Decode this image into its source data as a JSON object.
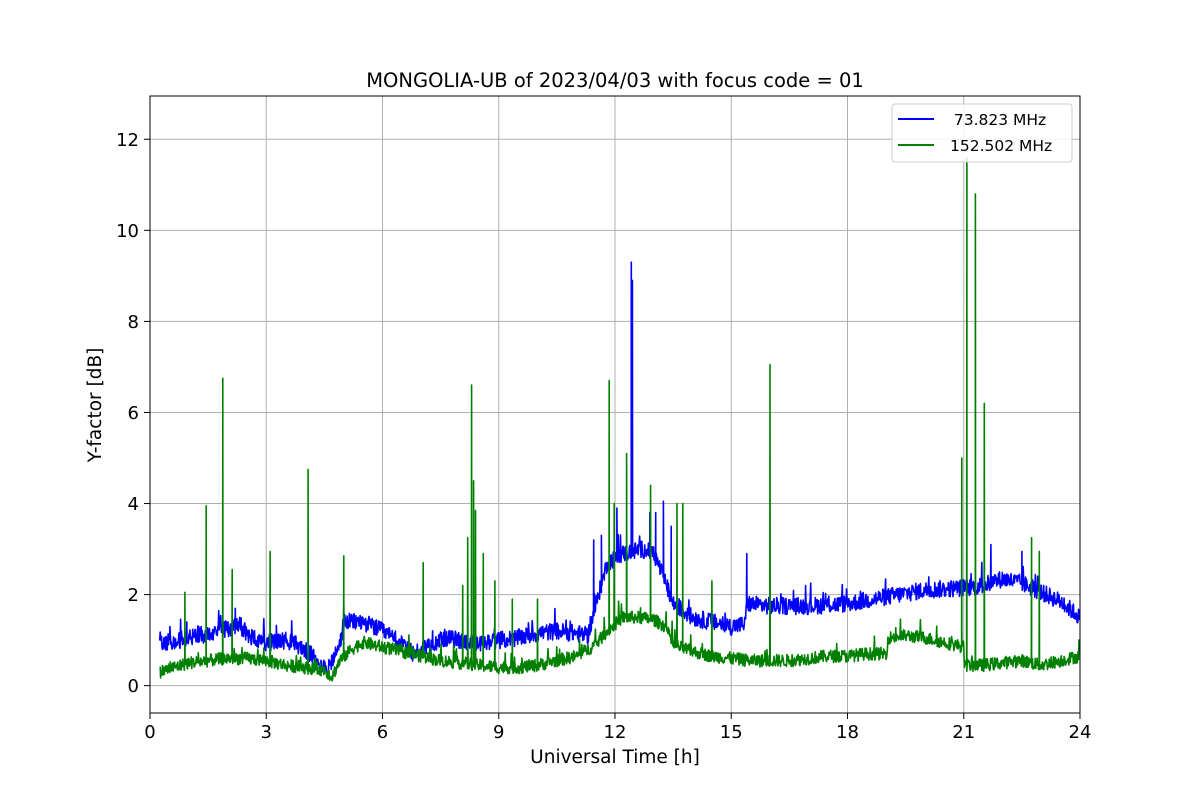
{
  "chart_data": {
    "type": "line",
    "title": "MONGOLIA-UB of 2023/04/03 with focus code = 01",
    "xlabel": "Universal Time [h]",
    "ylabel": "Y-factor [dB]",
    "xlim": [
      0,
      24
    ],
    "ylim": [
      -0.6,
      12.95
    ],
    "xticks": [
      0,
      3,
      6,
      9,
      12,
      15,
      18,
      21,
      24
    ],
    "yticks": [
      0,
      2,
      4,
      6,
      8,
      10,
      12
    ],
    "grid": true,
    "legend_position": "top-right",
    "series": [
      {
        "name": "  73.823 MHz",
        "color": "#0000ff",
        "baseline": [
          [
            0.25,
            1.0
          ],
          [
            0.5,
            0.95
          ],
          [
            1.0,
            1.05
          ],
          [
            1.5,
            1.15
          ],
          [
            2.0,
            1.25
          ],
          [
            2.3,
            1.35
          ],
          [
            2.6,
            1.05
          ],
          [
            3.0,
            0.95
          ],
          [
            3.5,
            1.0
          ],
          [
            3.8,
            0.9
          ],
          [
            4.2,
            0.65
          ],
          [
            4.6,
            0.35
          ],
          [
            4.9,
            0.9
          ],
          [
            5.0,
            1.4
          ],
          [
            5.5,
            1.4
          ],
          [
            6.0,
            1.2
          ],
          [
            6.5,
            0.9
          ],
          [
            6.8,
            0.7
          ],
          [
            7.2,
            0.9
          ],
          [
            7.6,
            1.05
          ],
          [
            8.0,
            1.0
          ],
          [
            8.5,
            0.9
          ],
          [
            9.0,
            1.0
          ],
          [
            9.5,
            1.05
          ],
          [
            10.0,
            1.15
          ],
          [
            10.5,
            1.2
          ],
          [
            11.0,
            1.15
          ],
          [
            11.3,
            1.1
          ],
          [
            11.5,
            1.75
          ],
          [
            11.8,
            2.7
          ],
          [
            12.2,
            2.9
          ],
          [
            12.7,
            3.0
          ],
          [
            13.0,
            2.9
          ],
          [
            13.2,
            2.5
          ],
          [
            13.5,
            1.8
          ],
          [
            14.0,
            1.5
          ],
          [
            14.5,
            1.4
          ],
          [
            15.0,
            1.3
          ],
          [
            15.35,
            1.35
          ],
          [
            15.4,
            1.8
          ],
          [
            16.0,
            1.75
          ],
          [
            17.0,
            1.75
          ],
          [
            18.0,
            1.8
          ],
          [
            19.0,
            1.95
          ],
          [
            20.0,
            2.1
          ],
          [
            21.0,
            2.15
          ],
          [
            21.5,
            2.2
          ],
          [
            22.0,
            2.35
          ],
          [
            22.5,
            2.25
          ],
          [
            23.0,
            2.05
          ],
          [
            23.5,
            1.85
          ],
          [
            24.0,
            1.5
          ]
        ],
        "peaks": [
          [
            0.95,
            1.4
          ],
          [
            2.2,
            1.7
          ],
          [
            5.0,
            1.75
          ],
          [
            11.45,
            3.2
          ],
          [
            11.65,
            3.3
          ],
          [
            12.05,
            3.9
          ],
          [
            12.42,
            9.3
          ],
          [
            12.45,
            8.9
          ],
          [
            12.9,
            3.8
          ],
          [
            13.05,
            3.8
          ],
          [
            13.25,
            4.05
          ],
          [
            13.45,
            3.5
          ],
          [
            15.4,
            2.9
          ],
          [
            21.7,
            3.1
          ],
          [
            22.5,
            2.95
          ]
        ]
      },
      {
        "name": "152.502 MHz",
        "color": "#008000",
        "baseline": [
          [
            0.25,
            0.3
          ],
          [
            0.6,
            0.4
          ],
          [
            1.0,
            0.5
          ],
          [
            1.5,
            0.55
          ],
          [
            2.0,
            0.6
          ],
          [
            2.5,
            0.6
          ],
          [
            3.0,
            0.55
          ],
          [
            3.5,
            0.45
          ],
          [
            4.0,
            0.4
          ],
          [
            4.5,
            0.35
          ],
          [
            4.7,
            0.2
          ],
          [
            4.9,
            0.55
          ],
          [
            5.2,
            0.8
          ],
          [
            5.5,
            0.95
          ],
          [
            6.0,
            0.85
          ],
          [
            6.5,
            0.75
          ],
          [
            7.0,
            0.65
          ],
          [
            7.5,
            0.55
          ],
          [
            8.0,
            0.5
          ],
          [
            8.5,
            0.45
          ],
          [
            9.0,
            0.4
          ],
          [
            9.5,
            0.4
          ],
          [
            10.0,
            0.45
          ],
          [
            10.5,
            0.55
          ],
          [
            11.0,
            0.65
          ],
          [
            11.5,
            0.9
          ],
          [
            11.8,
            1.2
          ],
          [
            12.2,
            1.5
          ],
          [
            12.6,
            1.5
          ],
          [
            13.0,
            1.45
          ],
          [
            13.3,
            1.3
          ],
          [
            13.5,
            0.9
          ],
          [
            14.0,
            0.75
          ],
          [
            14.5,
            0.65
          ],
          [
            15.0,
            0.6
          ],
          [
            15.5,
            0.55
          ],
          [
            16.0,
            0.55
          ],
          [
            16.5,
            0.55
          ],
          [
            17.0,
            0.6
          ],
          [
            17.5,
            0.65
          ],
          [
            18.0,
            0.65
          ],
          [
            18.5,
            0.7
          ],
          [
            19.0,
            0.7
          ],
          [
            19.05,
            1.05
          ],
          [
            19.5,
            1.1
          ],
          [
            20.0,
            1.05
          ],
          [
            20.5,
            0.95
          ],
          [
            21.0,
            0.85
          ],
          [
            21.02,
            0.45
          ],
          [
            21.5,
            0.45
          ],
          [
            22.0,
            0.5
          ],
          [
            22.5,
            0.55
          ],
          [
            23.0,
            0.45
          ],
          [
            23.5,
            0.55
          ],
          [
            24.0,
            0.65
          ]
        ],
        "peaks": [
          [
            0.9,
            2.05
          ],
          [
            1.45,
            3.95
          ],
          [
            1.88,
            6.75
          ],
          [
            2.12,
            2.55
          ],
          [
            3.1,
            2.95
          ],
          [
            4.08,
            4.75
          ],
          [
            5.0,
            2.85
          ],
          [
            7.05,
            2.7
          ],
          [
            8.07,
            2.2
          ],
          [
            8.2,
            3.25
          ],
          [
            8.3,
            6.6
          ],
          [
            8.35,
            4.5
          ],
          [
            8.4,
            3.85
          ],
          [
            8.6,
            2.9
          ],
          [
            8.9,
            2.3
          ],
          [
            9.35,
            1.9
          ],
          [
            10.0,
            1.9
          ],
          [
            11.85,
            6.7
          ],
          [
            11.98,
            4.0
          ],
          [
            12.3,
            5.1
          ],
          [
            12.92,
            4.4
          ],
          [
            13.6,
            4.0
          ],
          [
            13.75,
            4.0
          ],
          [
            14.5,
            2.3
          ],
          [
            16.0,
            7.05
          ],
          [
            20.95,
            5.0
          ],
          [
            21.08,
            11.6
          ],
          [
            21.3,
            10.8
          ],
          [
            21.53,
            6.2
          ],
          [
            22.75,
            3.25
          ],
          [
            22.95,
            2.95
          ]
        ]
      }
    ]
  }
}
